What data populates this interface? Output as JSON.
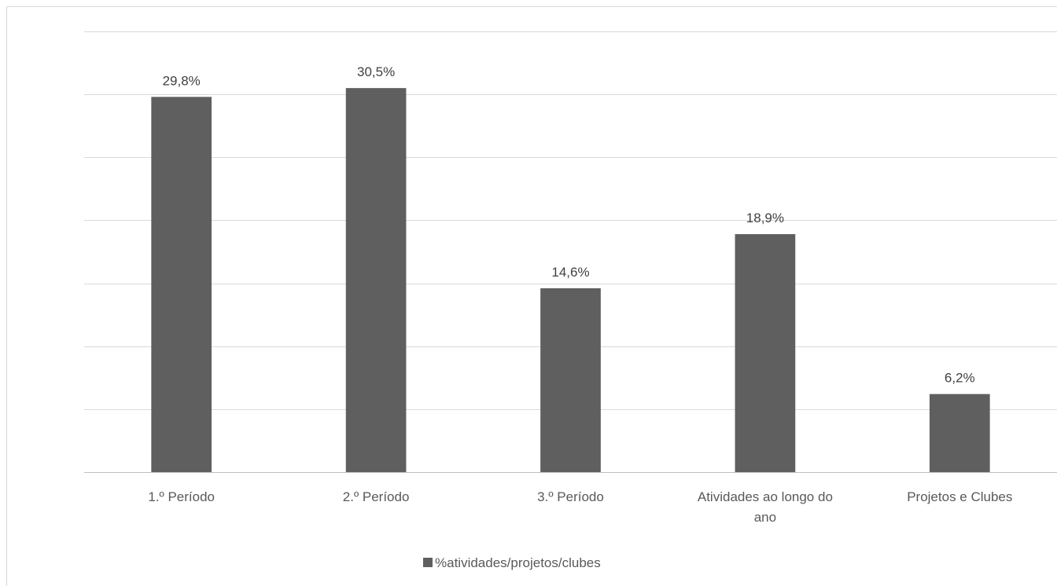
{
  "chart_data": {
    "type": "bar",
    "categories": [
      [
        "1.º Período"
      ],
      [
        "2.º Período"
      ],
      [
        "3.º Período"
      ],
      [
        "Atividades ao longo do",
        "ano"
      ],
      [
        "Projetos e Clubes"
      ]
    ],
    "series": [
      {
        "name": "%atividades/projetos/clubes",
        "values": [
          29.8,
          30.5,
          14.6,
          18.9,
          6.2
        ],
        "data_labels": [
          "29,8%",
          "30,5%",
          "14,6%",
          "18,9%",
          "6,2%"
        ],
        "color": "#5f5f5f"
      }
    ],
    "ylim": [
      0,
      35
    ],
    "gridlines": true,
    "legend_position": "bottom",
    "title": "",
    "xlabel": "",
    "ylabel": ""
  }
}
